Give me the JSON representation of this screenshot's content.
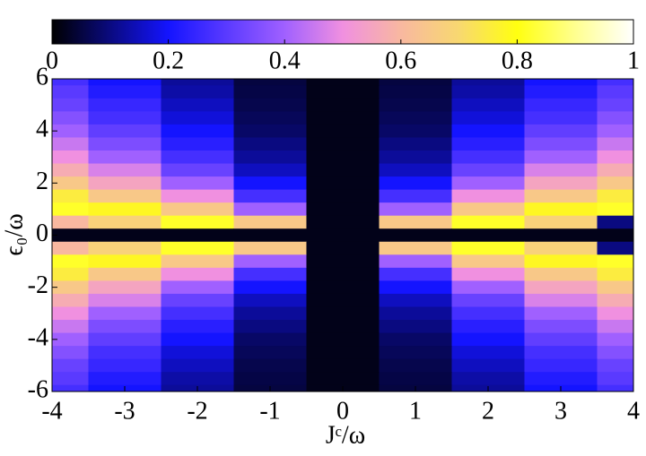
{
  "chart_data": {
    "type": "heatmap",
    "xlabel": "Jᶜ/ω",
    "ylabel": "ϵ₀/ω",
    "x": [
      -4,
      -3,
      -2,
      -1,
      0,
      1,
      2,
      3,
      4
    ],
    "y": [
      6,
      5.5,
      5,
      4.5,
      4,
      3.5,
      3,
      2.5,
      2,
      1.5,
      1,
      0.5,
      0,
      -0.5,
      -1,
      -1.5,
      -2,
      -2.5,
      -3,
      -3.5,
      -4,
      -4.5,
      -5,
      -5.5,
      -6
    ],
    "z": [
      [
        0.27,
        0.2,
        0.12,
        0.05,
        0.02,
        0.05,
        0.12,
        0.2,
        0.27
      ],
      [
        0.3,
        0.22,
        0.13,
        0.055,
        0.02,
        0.055,
        0.13,
        0.22,
        0.3
      ],
      [
        0.32,
        0.25,
        0.15,
        0.06,
        0.02,
        0.06,
        0.15,
        0.25,
        0.32
      ],
      [
        0.36,
        0.27,
        0.17,
        0.07,
        0.02,
        0.07,
        0.17,
        0.27,
        0.36
      ],
      [
        0.4,
        0.31,
        0.2,
        0.08,
        0.02,
        0.08,
        0.2,
        0.31,
        0.4
      ],
      [
        0.45,
        0.35,
        0.23,
        0.1,
        0.02,
        0.1,
        0.23,
        0.35,
        0.45
      ],
      [
        0.5,
        0.4,
        0.27,
        0.12,
        0.02,
        0.12,
        0.27,
        0.4,
        0.5
      ],
      [
        0.57,
        0.47,
        0.32,
        0.15,
        0.02,
        0.15,
        0.32,
        0.47,
        0.57
      ],
      [
        0.65,
        0.55,
        0.4,
        0.2,
        0.02,
        0.2,
        0.4,
        0.55,
        0.65
      ],
      [
        0.75,
        0.65,
        0.5,
        0.27,
        0.02,
        0.27,
        0.5,
        0.65,
        0.75
      ],
      [
        0.82,
        0.78,
        0.65,
        0.4,
        0.02,
        0.4,
        0.65,
        0.78,
        0.82
      ],
      [
        0.6,
        0.68,
        0.82,
        0.65,
        0.02,
        0.65,
        0.82,
        0.68,
        0.1
      ],
      [
        0.02,
        0.02,
        0.02,
        0.02,
        0.02,
        0.02,
        0.02,
        0.02,
        0.02
      ],
      [
        0.6,
        0.68,
        0.82,
        0.65,
        0.02,
        0.65,
        0.82,
        0.68,
        0.1
      ],
      [
        0.82,
        0.78,
        0.65,
        0.4,
        0.02,
        0.4,
        0.65,
        0.78,
        0.82
      ],
      [
        0.75,
        0.65,
        0.5,
        0.27,
        0.02,
        0.27,
        0.5,
        0.65,
        0.75
      ],
      [
        0.65,
        0.55,
        0.4,
        0.2,
        0.02,
        0.2,
        0.4,
        0.55,
        0.65
      ],
      [
        0.57,
        0.47,
        0.32,
        0.15,
        0.02,
        0.15,
        0.32,
        0.47,
        0.57
      ],
      [
        0.5,
        0.4,
        0.27,
        0.12,
        0.02,
        0.12,
        0.27,
        0.4,
        0.5
      ],
      [
        0.45,
        0.35,
        0.23,
        0.1,
        0.02,
        0.1,
        0.23,
        0.35,
        0.45
      ],
      [
        0.4,
        0.31,
        0.2,
        0.08,
        0.02,
        0.08,
        0.2,
        0.31,
        0.4
      ],
      [
        0.36,
        0.27,
        0.17,
        0.07,
        0.02,
        0.07,
        0.17,
        0.27,
        0.36
      ],
      [
        0.32,
        0.25,
        0.15,
        0.06,
        0.02,
        0.06,
        0.15,
        0.25,
        0.32
      ],
      [
        0.3,
        0.22,
        0.13,
        0.055,
        0.02,
        0.055,
        0.13,
        0.22,
        0.3
      ],
      [
        0.27,
        0.2,
        0.12,
        0.05,
        0.02,
        0.05,
        0.12,
        0.2,
        0.27
      ]
    ],
    "xlim": [
      -4,
      4
    ],
    "ylim": [
      -6,
      6
    ],
    "xticks": [
      -4,
      -3,
      -2,
      -1,
      0,
      1,
      2,
      3,
      4
    ],
    "yticks": [
      -6,
      -4,
      -2,
      0,
      2,
      4,
      6
    ],
    "clim": [
      0,
      1
    ],
    "cticks": [
      0,
      0.2,
      0.4,
      0.6,
      0.8,
      1
    ],
    "colormap": [
      [
        0,
        "#000000"
      ],
      [
        0.2,
        "#1414ff"
      ],
      [
        0.4,
        "#a060ff"
      ],
      [
        0.5,
        "#f090e0"
      ],
      [
        0.6,
        "#f8b8a0"
      ],
      [
        0.7,
        "#f8d870"
      ],
      [
        0.8,
        "#ffff10"
      ],
      [
        0.9,
        "#ffff90"
      ],
      [
        1,
        "#ffffff"
      ]
    ]
  }
}
